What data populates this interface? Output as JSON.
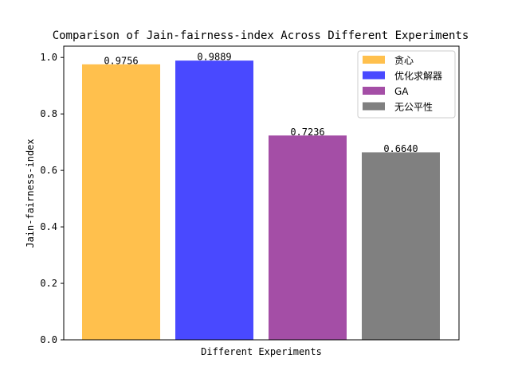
{
  "chart_data": {
    "type": "bar",
    "title": "Comparison of Jain-fairness-index Across Different Experiments",
    "xlabel": "Different Experiments",
    "ylabel": "Jain-fairness-index",
    "ylim": [
      0,
      1.04
    ],
    "yticks": [
      0.0,
      0.2,
      0.4,
      0.6,
      0.8,
      1.0
    ],
    "ytick_labels": [
      "0.0",
      "0.2",
      "0.4",
      "0.6",
      "0.8",
      "1.0"
    ],
    "grid": false,
    "legend_position": "top-right",
    "series": [
      {
        "name": "贪心",
        "value": 0.9756,
        "label": "0.9756",
        "color": "#ffc04d"
      },
      {
        "name": "优化求解器",
        "value": 0.9889,
        "label": "0.9889",
        "color": "#4949ff"
      },
      {
        "name": "GA",
        "value": 0.7236,
        "label": "0.7236",
        "color": "#a44ea6"
      },
      {
        "name": "无公平性",
        "value": 0.664,
        "label": "0.6640",
        "color": "#808080"
      }
    ]
  }
}
